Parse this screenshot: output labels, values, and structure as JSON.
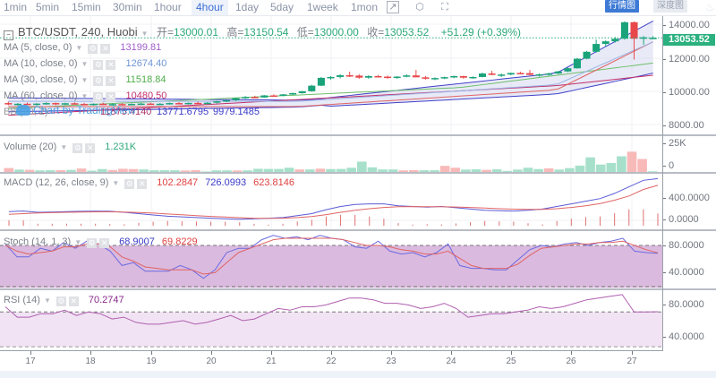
{
  "toolbar": {
    "timeframes": [
      "1min",
      "5min",
      "15min",
      "30min",
      "1hour",
      "4hour",
      "1day",
      "5day",
      "1week",
      "1mon"
    ],
    "active_timeframe": "4hour",
    "icons": [
      "indicator-icon",
      "settings-icon",
      "fullscreen-icon"
    ],
    "view_buttons": [
      {
        "label": "行情图",
        "active": true
      },
      {
        "label": "深度图",
        "active": false
      }
    ]
  },
  "header": {
    "symbol": "BTC/USDT, 240, Huobi",
    "open_label": "开=",
    "open": "13000.01",
    "high_label": "高=",
    "high": "13150.54",
    "low_label": "低=",
    "low": "13000.00",
    "close_label": "收=",
    "close": "13053.52",
    "change": "+51.29 (+0.39%)"
  },
  "indicators": {
    "ma5": {
      "title": "MA (5, close, 0)",
      "value": "13199.81",
      "color": "#a05ec8"
    },
    "ma10": {
      "title": "MA (10, close, 0)",
      "value": "12674.40",
      "color": "#6f95d4"
    },
    "ma30": {
      "title": "MA (30, close, 0)",
      "value": "11518.84",
      "color": "#4fae4a"
    },
    "ma60": {
      "title": "MA (60, close, 0)",
      "value": "10480.50",
      "color": "#c2306b"
    },
    "bb": {
      "title": "BB (20, 2)",
      "values": [
        "11875.4140",
        "13771.6795",
        "9979.1485"
      ]
    },
    "volume": {
      "title": "Volume (20)",
      "value": "1.231K",
      "color": "#2ea87b"
    },
    "macd": {
      "title": "MACD (12, 26, close, 9)",
      "values": [
        "102.2847",
        "726.0993",
        "623.8146"
      ]
    },
    "stoch": {
      "title": "Stoch (14, 1, 3)",
      "values": [
        "68.9007",
        "69.8229"
      ]
    },
    "rsi": {
      "title": "RSI (14)",
      "value": "70.2747"
    }
  },
  "watermark": "Chart by TradingView",
  "price_axis": {
    "labels": [
      "14000.00",
      "12000.00",
      "10000.00",
      "8000.00"
    ],
    "current_price": "13053.52"
  },
  "volume_axis": {
    "labels": [
      "25K",
      "0"
    ]
  },
  "macd_axis": {
    "labels": [
      "400.0000",
      "0.0000"
    ]
  },
  "stoch_axis": {
    "labels": [
      "80.0000",
      "40.0000"
    ]
  },
  "rsi_axis": {
    "labels": [
      "80.0000",
      "40.0000"
    ]
  },
  "time_axis": {
    "labels": [
      "17",
      "18",
      "19",
      "20",
      "21",
      "22",
      "23",
      "24",
      "25",
      "26",
      "27"
    ]
  },
  "chart_data": [
    {
      "type": "candlestick",
      "title": "BTC/USDT, 240, Huobi",
      "x_labels": [
        "17",
        "18",
        "19",
        "20",
        "21",
        "22",
        "23",
        "24",
        "25",
        "26",
        "27"
      ],
      "ylim": [
        7500,
        14300
      ],
      "candles_ohlc": [
        [
          9300,
          9380,
          9180,
          9220
        ],
        [
          9220,
          9300,
          9150,
          9260
        ],
        [
          9260,
          9330,
          9200,
          9230
        ],
        [
          9230,
          9290,
          9150,
          9270
        ],
        [
          9270,
          9340,
          9200,
          9300
        ],
        [
          9300,
          9330,
          9180,
          9240
        ],
        [
          9240,
          9320,
          9190,
          9290
        ],
        [
          9290,
          9340,
          9220,
          9250
        ],
        [
          9250,
          9310,
          9170,
          9210
        ],
        [
          9210,
          9280,
          9150,
          9260
        ],
        [
          9260,
          9320,
          9200,
          9220
        ],
        [
          9220,
          9290,
          9160,
          9240
        ],
        [
          9240,
          9300,
          9190,
          9230
        ],
        [
          9230,
          9280,
          9170,
          9250
        ],
        [
          9250,
          9310,
          9200,
          9270
        ],
        [
          9270,
          9320,
          9210,
          9240
        ],
        [
          9240,
          9300,
          9190,
          9260
        ],
        [
          9260,
          9330,
          9210,
          9300
        ],
        [
          9300,
          9350,
          9240,
          9270
        ],
        [
          9270,
          9330,
          9220,
          9310
        ],
        [
          9310,
          9380,
          9260,
          9290
        ],
        [
          9290,
          9350,
          9230,
          9320
        ],
        [
          9320,
          9420,
          9280,
          9400
        ],
        [
          9400,
          9480,
          9350,
          9460
        ],
        [
          9460,
          9600,
          9420,
          9580
        ],
        [
          9580,
          9700,
          9540,
          9650
        ],
        [
          9650,
          9720,
          9580,
          9620
        ],
        [
          9620,
          9760,
          9600,
          9740
        ],
        [
          9740,
          9800,
          9680,
          9720
        ],
        [
          9720,
          9820,
          9690,
          9800
        ],
        [
          9800,
          9900,
          9760,
          9870
        ],
        [
          9870,
          10000,
          9840,
          9980
        ],
        [
          9980,
          10350,
          9950,
          10300
        ],
        [
          10300,
          10800,
          10280,
          10750
        ],
        [
          10750,
          10850,
          10650,
          10800
        ],
        [
          10800,
          10950,
          10720,
          10900
        ],
        [
          10900,
          11100,
          10800,
          10880
        ],
        [
          10880,
          10950,
          10700,
          10760
        ],
        [
          10760,
          10900,
          10700,
          10850
        ],
        [
          10850,
          10920,
          10780,
          10820
        ],
        [
          10820,
          10880,
          10700,
          10740
        ],
        [
          10740,
          10850,
          10700,
          10820
        ],
        [
          10820,
          10950,
          10780,
          10890
        ],
        [
          10890,
          11200,
          10850,
          10780
        ],
        [
          10780,
          10860,
          10650,
          10700
        ],
        [
          10700,
          10780,
          10620,
          10740
        ],
        [
          10740,
          10820,
          10680,
          10790
        ],
        [
          10790,
          10880,
          10730,
          10850
        ],
        [
          10850,
          10870,
          10700,
          10760
        ],
        [
          10760,
          10830,
          10700,
          10800
        ],
        [
          10800,
          11050,
          10780,
          11000
        ],
        [
          11000,
          11150,
          10900,
          10920
        ],
        [
          10920,
          11000,
          10800,
          10940
        ],
        [
          10940,
          11050,
          10900,
          11030
        ],
        [
          11030,
          11100,
          10980,
          11020
        ],
        [
          11020,
          11200,
          10900,
          10920
        ],
        [
          10920,
          11000,
          10820,
          10950
        ],
        [
          10950,
          11050,
          10880,
          11000
        ],
        [
          11000,
          11150,
          10960,
          11120
        ],
        [
          11120,
          11350,
          11080,
          11300
        ],
        [
          11300,
          11900,
          11280,
          11850
        ],
        [
          11850,
          12300,
          11820,
          12250
        ],
        [
          12250,
          12950,
          12200,
          12700
        ],
        [
          12700,
          12900,
          12550,
          12850
        ],
        [
          12850,
          13100,
          12780,
          13000
        ],
        [
          13000,
          14000,
          12950,
          13950
        ],
        [
          13950,
          14000,
          11800,
          13000
        ],
        [
          13000,
          13150,
          12650,
          13080
        ],
        [
          13000,
          13150,
          13000,
          13053.52
        ]
      ],
      "overlays": {
        "MA5_last": 13199.81,
        "MA10_last": 12674.4,
        "MA30_last": 11518.84,
        "MA60_last": 10480.5,
        "BB_basis_last": 11875.414,
        "BB_upper_last": 13771.6795,
        "BB_lower_last": 9979.1485
      }
    },
    {
      "type": "bar",
      "title": "Volume (20)",
      "ylim": [
        0,
        27000
      ],
      "values": [
        3000,
        1800,
        1600,
        1200,
        1300,
        1400,
        1600,
        2600,
        1000,
        2200,
        1500,
        2400,
        2200,
        1900,
        1300,
        1300,
        1300,
        1100,
        1400,
        400,
        1200,
        1200,
        1100,
        1200,
        2400,
        2300,
        2300,
        3200,
        1900,
        1900,
        2500,
        2200,
        2300,
        3200,
        7800,
        3500,
        1900,
        1900,
        1200,
        1400,
        1300,
        1300,
        4600,
        3200,
        1800,
        2000,
        1600,
        2000,
        800,
        1800,
        3200,
        2200,
        2700,
        1800,
        2900,
        4800,
        11000,
        5600,
        6800,
        11800,
        15300,
        9800,
        500
      ],
      "up": [
        false,
        true,
        false,
        true,
        true,
        false,
        true,
        false,
        true,
        true,
        false,
        false,
        false,
        true,
        true,
        true,
        true,
        false,
        false,
        true,
        true,
        true,
        false,
        true,
        true,
        true,
        true,
        true,
        false,
        true,
        false,
        true,
        true,
        true,
        true,
        true,
        true,
        true,
        false,
        false,
        true,
        true,
        false,
        false,
        true,
        true,
        false,
        true,
        true,
        true,
        true,
        true,
        false,
        true,
        true,
        true,
        true,
        true,
        true,
        true,
        false,
        false,
        true
      ]
    },
    {
      "type": "line",
      "title": "MACD (12, 26, close, 9)",
      "ylim": [
        -50,
        800
      ],
      "series": [
        {
          "name": "MACD",
          "color": "#5b5bd6",
          "values": [
            220,
            230,
            210,
            215,
            220,
            225,
            228,
            225,
            210,
            190,
            170,
            150,
            140,
            130,
            120,
            110,
            105,
            110,
            120,
            130,
            160,
            190,
            250,
            300,
            330,
            340,
            340,
            310,
            300,
            290,
            300,
            280,
            260,
            240,
            235,
            230,
            240,
            260,
            300,
            340,
            380,
            420,
            500,
            600,
            700,
            726
          ]
        },
        {
          "name": "Signal",
          "color": "#e06464",
          "values": [
            180,
            190,
            200,
            205,
            210,
            215,
            218,
            218,
            215,
            208,
            198,
            185,
            172,
            160,
            148,
            138,
            128,
            120,
            118,
            120,
            130,
            145,
            175,
            210,
            240,
            265,
            285,
            295,
            298,
            296,
            296,
            292,
            284,
            275,
            266,
            258,
            254,
            256,
            266,
            285,
            310,
            345,
            395,
            460,
            560,
            623.8
          ]
        }
      ],
      "histogram_last": 102.2847
    },
    {
      "type": "line",
      "title": "Stoch (14, 1, 3)",
      "ylim": [
        20,
        100
      ],
      "series": [
        {
          "name": "%K",
          "color": "#6a6ae0",
          "values": [
            82,
            64,
            64,
            76,
            72,
            84,
            76,
            86,
            82,
            72,
            52,
            56,
            44,
            44,
            44,
            52,
            46,
            34,
            46,
            70,
            76,
            76,
            88,
            94,
            90,
            92,
            88,
            94,
            90,
            88,
            78,
            76,
            86,
            72,
            68,
            70,
            64,
            70,
            82,
            52,
            48,
            48,
            46,
            46,
            60,
            74,
            80,
            78,
            82,
            84,
            80,
            84,
            86,
            90,
            72,
            70,
            68.9
          ]
        },
        {
          "name": "%D",
          "color": "#e06464",
          "values": [
            80,
            72,
            68,
            70,
            72,
            78,
            78,
            82,
            82,
            78,
            64,
            58,
            50,
            48,
            46,
            46,
            46,
            40,
            42,
            56,
            70,
            76,
            82,
            88,
            90,
            90,
            90,
            90,
            90,
            88,
            84,
            80,
            80,
            78,
            74,
            72,
            68,
            68,
            72,
            62,
            52,
            48,
            48,
            48,
            54,
            66,
            76,
            78,
            80,
            82,
            82,
            84,
            84,
            86,
            80,
            74,
            69.8
          ]
        }
      ],
      "bands": [
        80,
        20
      ]
    },
    {
      "type": "line",
      "title": "RSI (14)",
      "ylim": [
        25,
        95
      ],
      "series": [
        {
          "name": "RSI",
          "color": "#b05fb0",
          "values": [
            76,
            64,
            64,
            68,
            68,
            72,
            66,
            70,
            68,
            62,
            64,
            58,
            56,
            56,
            58,
            60,
            56,
            58,
            62,
            66,
            60,
            62,
            68,
            74,
            72,
            76,
            76,
            78,
            82,
            86,
            86,
            84,
            80,
            80,
            78,
            74,
            76,
            80,
            74,
            64,
            66,
            68,
            68,
            70,
            72,
            76,
            74,
            76,
            80,
            84,
            86,
            88,
            90,
            70,
            70,
            70.3
          ]
        }
      ],
      "bands": [
        70,
        30
      ]
    }
  ]
}
